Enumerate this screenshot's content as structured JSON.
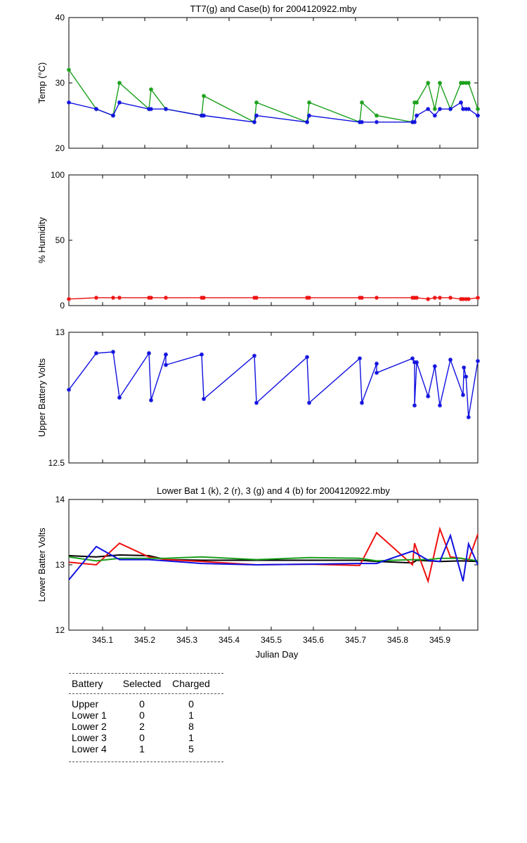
{
  "colors": {
    "green": "#1aa01a",
    "blue": "#1010e0",
    "red": "#ee1010",
    "black": "#000000"
  },
  "x_axis": {
    "label": "Julian Day",
    "range": [
      345.02,
      345.99
    ],
    "ticks": [
      345.1,
      345.2,
      345.3,
      345.4,
      345.5,
      345.6,
      345.7,
      345.8,
      345.9
    ],
    "tick_labels": [
      "345.1",
      "345.2",
      "345.3",
      "345.4",
      "345.5",
      "345.6",
      "345.7",
      "345.8",
      "345.9"
    ]
  },
  "chart_data": [
    {
      "type": "line",
      "title": "TT7(g) and Case(b) for 2004120922.mby",
      "ylabel": "Temp  (°C)",
      "ylim": [
        20,
        40
      ],
      "yticks": [
        20,
        30,
        40
      ],
      "ytick_labels": [
        "20",
        "30",
        "40"
      ],
      "series": [
        {
          "color": "green",
          "marker": "*",
          "x": [
            345.02,
            345.085,
            345.125,
            345.14,
            345.21,
            345.215,
            345.25,
            345.335,
            345.34,
            345.46,
            345.465,
            345.585,
            345.59,
            345.71,
            345.715,
            345.75,
            345.835,
            345.84,
            345.845,
            345.872,
            345.888,
            345.9,
            345.925,
            345.95,
            345.955,
            345.962,
            345.968,
            345.99
          ],
          "y": [
            32,
            26,
            25,
            30,
            26,
            29,
            26,
            25,
            28,
            24,
            27,
            24,
            27,
            24,
            27,
            25,
            24,
            27,
            27,
            30,
            26,
            30,
            26,
            30,
            30,
            30,
            30,
            26
          ]
        },
        {
          "color": "blue",
          "marker": "*",
          "x": [
            345.02,
            345.085,
            345.125,
            345.14,
            345.21,
            345.215,
            345.25,
            345.335,
            345.34,
            345.46,
            345.465,
            345.585,
            345.59,
            345.71,
            345.715,
            345.75,
            345.835,
            345.84,
            345.845,
            345.872,
            345.888,
            345.9,
            345.925,
            345.95,
            345.955,
            345.962,
            345.968,
            345.99
          ],
          "y": [
            27,
            26,
            25,
            27,
            26,
            26,
            26,
            25,
            25,
            24,
            25,
            24,
            25,
            24,
            24,
            24,
            24,
            24,
            25,
            26,
            25,
            26,
            26,
            27,
            26,
            26,
            26,
            25
          ]
        }
      ]
    },
    {
      "type": "line",
      "title": "",
      "ylabel": "% Humidity",
      "ylim": [
        0,
        100
      ],
      "yticks": [
        0,
        50,
        100
      ],
      "ytick_labels": [
        "0",
        "50",
        "100"
      ],
      "series": [
        {
          "color": "red",
          "marker": "*",
          "x": [
            345.02,
            345.085,
            345.125,
            345.14,
            345.21,
            345.215,
            345.25,
            345.335,
            345.34,
            345.46,
            345.465,
            345.585,
            345.59,
            345.71,
            345.715,
            345.75,
            345.835,
            345.84,
            345.845,
            345.872,
            345.888,
            345.9,
            345.925,
            345.95,
            345.955,
            345.962,
            345.968,
            345.99
          ],
          "y": [
            5,
            6,
            6,
            6,
            6,
            6,
            6,
            6,
            6,
            6,
            6,
            6,
            6,
            6,
            6,
            6,
            6,
            6,
            6,
            5,
            6,
            6,
            6,
            5,
            5,
            5,
            5,
            6
          ]
        }
      ]
    },
    {
      "type": "line",
      "title": "",
      "ylabel": "Upper Battery Volts",
      "ylim": [
        12.5,
        13
      ],
      "yticks": [
        12.5,
        13
      ],
      "ytick_labels": [
        "12.5",
        "13"
      ],
      "series": [
        {
          "color": "blue",
          "marker": "*",
          "x": [
            345.02,
            345.085,
            345.125,
            345.14,
            345.21,
            345.215,
            345.25,
            345.25,
            345.335,
            345.34,
            345.46,
            345.465,
            345.585,
            345.59,
            345.71,
            345.715,
            345.75,
            345.75,
            345.835,
            345.84,
            345.84,
            345.845,
            345.872,
            345.888,
            345.9,
            345.925,
            345.955,
            345.957,
            345.962,
            345.968,
            345.99
          ],
          "y": [
            12.78,
            12.92,
            12.925,
            12.75,
            12.92,
            12.74,
            12.915,
            12.875,
            12.915,
            12.745,
            12.91,
            12.73,
            12.905,
            12.73,
            12.9,
            12.73,
            12.88,
            12.845,
            12.9,
            12.885,
            12.72,
            12.885,
            12.755,
            12.87,
            12.72,
            12.895,
            12.76,
            12.865,
            12.83,
            12.675,
            12.89
          ]
        }
      ]
    },
    {
      "type": "line",
      "title": "Lower Bat 1 (k), 2 (r), 3 (g) and 4 (b) for 2004120922.mby",
      "ylabel": "Lower Batter Volts",
      "ylim": [
        12,
        14
      ],
      "yticks": [
        12,
        13,
        14
      ],
      "ytick_labels": [
        "12",
        "13",
        "14"
      ],
      "series": [
        {
          "color": "black",
          "x": [
            345.02,
            345.085,
            345.14,
            345.21,
            345.25,
            345.335,
            345.465,
            345.59,
            345.71,
            345.75,
            345.835,
            345.845,
            345.9,
            345.95,
            345.99
          ],
          "y": [
            13.14,
            13.12,
            13.15,
            13.14,
            13.08,
            13.07,
            13.07,
            13.07,
            13.07,
            13.05,
            13.03,
            13.07,
            13.05,
            13.06,
            13.05
          ]
        },
        {
          "color": "red",
          "x": [
            345.02,
            345.085,
            345.14,
            345.21,
            345.25,
            345.335,
            345.465,
            345.59,
            345.71,
            345.75,
            345.835,
            345.84,
            345.855,
            345.872,
            345.9,
            345.925,
            345.95,
            345.968,
            345.99
          ],
          "y": [
            13.04,
            13.0,
            13.33,
            13.12,
            13.08,
            13.05,
            13.0,
            13.01,
            12.99,
            13.49,
            13.0,
            13.33,
            13.05,
            12.75,
            13.55,
            13.12,
            13.1,
            13.07,
            13.47
          ]
        },
        {
          "color": "green",
          "x": [
            345.02,
            345.085,
            345.14,
            345.21,
            345.25,
            345.335,
            345.465,
            345.59,
            345.71,
            345.75,
            345.835,
            345.872,
            345.9,
            345.95,
            345.99
          ],
          "y": [
            13.12,
            13.06,
            13.1,
            13.1,
            13.1,
            13.12,
            13.08,
            13.11,
            13.1,
            13.06,
            13.08,
            13.08,
            13.1,
            13.1,
            13.06
          ]
        },
        {
          "color": "blue",
          "x": [
            345.02,
            345.085,
            345.14,
            345.21,
            345.335,
            345.465,
            345.59,
            345.71,
            345.75,
            345.835,
            345.872,
            345.9,
            345.925,
            345.955,
            345.968,
            345.99
          ],
          "y": [
            12.77,
            13.28,
            13.08,
            13.08,
            13.02,
            13.0,
            13.01,
            13.02,
            13.02,
            13.21,
            13.07,
            13.05,
            13.45,
            12.75,
            13.32,
            13.0
          ]
        }
      ]
    }
  ],
  "battery_table": {
    "headers": [
      "Battery",
      "Selected",
      "Charged"
    ],
    "rows": [
      [
        "Upper",
        "0",
        "0"
      ],
      [
        "Lower 1",
        "0",
        "1"
      ],
      [
        "Lower 2",
        "2",
        "8"
      ],
      [
        "Lower 3",
        "0",
        "1"
      ],
      [
        "Lower 4",
        "1",
        "5"
      ]
    ]
  }
}
